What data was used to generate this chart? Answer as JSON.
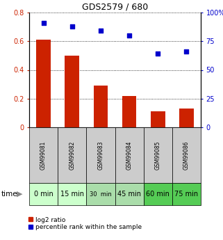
{
  "title": "GDS2579 / 680",
  "categories": [
    "GSM99081",
    "GSM99082",
    "GSM99083",
    "GSM99084",
    "GSM99085",
    "GSM99086"
  ],
  "time_labels": [
    "0 min",
    "15 min",
    "30  min",
    "45 min",
    "60 min",
    "75 min"
  ],
  "log2_ratio": [
    0.61,
    0.5,
    0.29,
    0.22,
    0.11,
    0.13
  ],
  "percentile_rank": [
    91,
    88,
    84,
    80,
    64,
    66
  ],
  "bar_color": "#cc2200",
  "point_color": "#0000cc",
  "ylim_left": [
    0,
    0.8
  ],
  "ylim_right": [
    0,
    100
  ],
  "yticks_left": [
    0,
    0.2,
    0.4,
    0.6,
    0.8
  ],
  "yticks_right": [
    0,
    25,
    50,
    75,
    100
  ],
  "ytick_labels_left": [
    "0",
    "0.2",
    "0.4",
    "0.6",
    "0.8"
  ],
  "ytick_labels_right": [
    "0",
    "25",
    "50",
    "75",
    "100%"
  ],
  "bar_width": 0.5,
  "time_colors": [
    "#ccffcc",
    "#ccffcc",
    "#aaddaa",
    "#aaddaa",
    "#55cc55",
    "#55cc55"
  ],
  "gsm_bg_color": "#cccccc",
  "legend_items": [
    "log2 ratio",
    "percentile rank within the sample"
  ],
  "fig_width": 3.21,
  "fig_height": 3.45,
  "dpi": 100
}
